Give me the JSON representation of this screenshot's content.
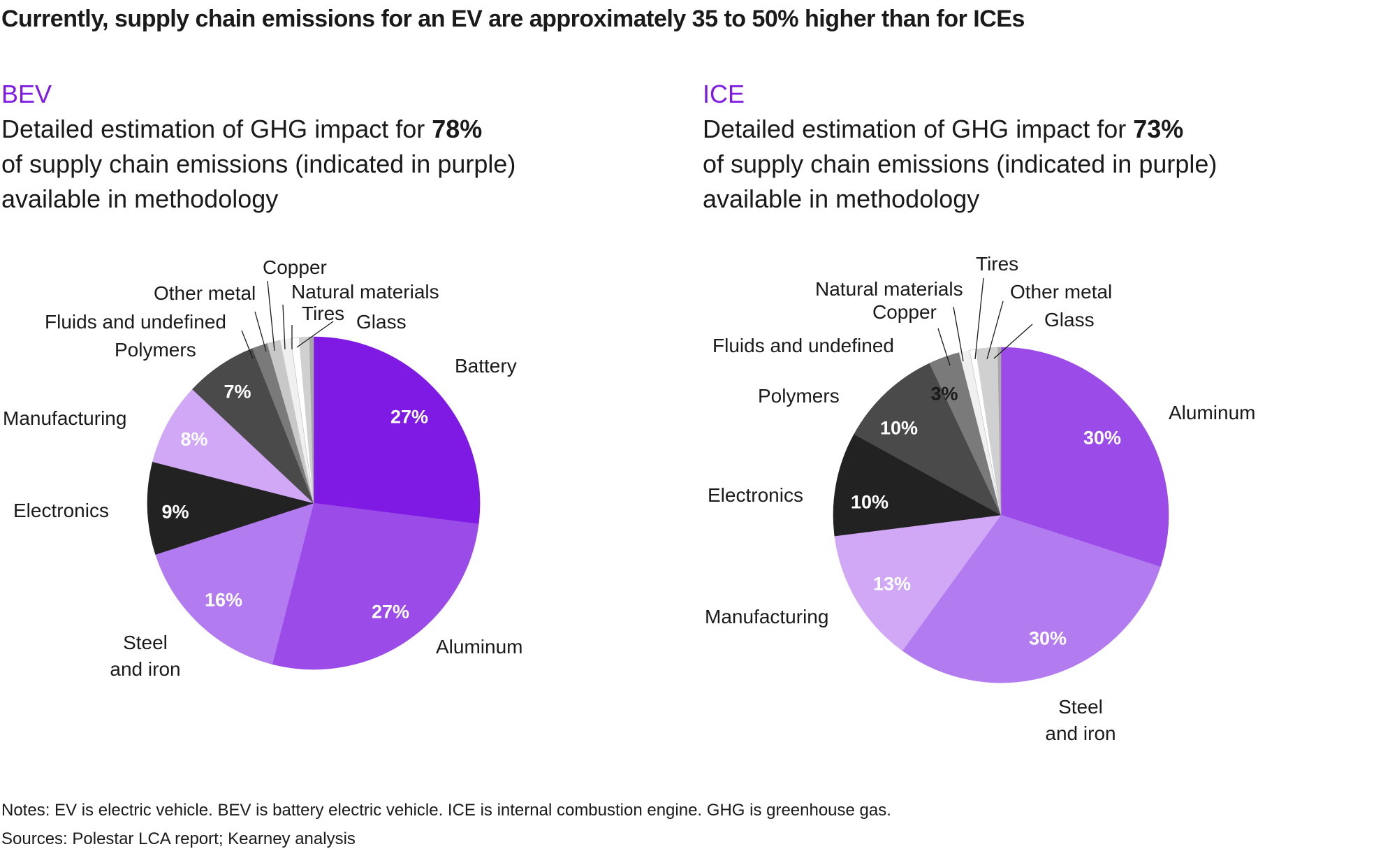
{
  "title": "Currently, supply chain emissions for an EV are approximately 35 to 50% higher than for ICEs",
  "notes": "Notes: EV is electric vehicle. BEV is battery electric vehicle. ICE is internal combustion engine. GHG is greenhouse gas.",
  "sources": "Sources: Polestar LCA report; Kearney analysis",
  "chart_data": [
    {
      "type": "pie",
      "title": "BEV",
      "subtitle_pre": "Detailed estimation of GHG impact for ",
      "subtitle_bold": "78%",
      "subtitle_line2": "of supply chain emissions (indicated in purple)",
      "subtitle_line3": "available in methodology",
      "slices": [
        {
          "label": "Battery",
          "value": 27,
          "value_label": "27%",
          "color": "#7e1ae3"
        },
        {
          "label": "Aluminum",
          "value": 27,
          "value_label": "27%",
          "color": "#9b4be8"
        },
        {
          "label": "Steel",
          "label2": "and iron",
          "value": 16,
          "value_label": "16%",
          "color": "#b27cf0"
        },
        {
          "label": "Electronics",
          "value": 9,
          "value_label": "9%",
          "color": "#222222"
        },
        {
          "label": "Manufacturing",
          "value": 8,
          "value_label": "8%",
          "color": "#d0a8f5"
        },
        {
          "label": "Polymers",
          "value": 7,
          "value_label": "7%",
          "color": "#4a4a4a"
        },
        {
          "label": "Fluids and undefined",
          "value": 1.5,
          "color": "#7a7a7a"
        },
        {
          "label": "Other metal",
          "value": 1.3,
          "color": "#c8c8c8"
        },
        {
          "label": "Copper",
          "value": 1,
          "color": "#f0f0f0"
        },
        {
          "label": "Natural materials",
          "value": 0.8,
          "color": "#ffffff"
        },
        {
          "label": "Tires",
          "value": 1,
          "color": "#d0d0d0"
        },
        {
          "label": "Glass",
          "value": 0.4,
          "color": "#a8a8a8"
        }
      ]
    },
    {
      "type": "pie",
      "title": "ICE",
      "subtitle_pre": "Detailed estimation of GHG impact for ",
      "subtitle_bold": "73%",
      "subtitle_line2": "of supply chain emissions (indicated in purple)",
      "subtitle_line3": "available in methodology",
      "slices": [
        {
          "label": "Aluminum",
          "value": 30,
          "value_label": "30%",
          "color": "#9b4be8"
        },
        {
          "label": "Steel",
          "label2": "and iron",
          "value": 30,
          "value_label": "30%",
          "color": "#b27cf0"
        },
        {
          "label": "Manufacturing",
          "value": 13,
          "value_label": "13%",
          "color": "#d0a8f5"
        },
        {
          "label": "Electronics",
          "value": 10,
          "value_label": "10%",
          "color": "#222222"
        },
        {
          "label": "Polymers",
          "value": 10,
          "value_label": "10%",
          "color": "#4a4a4a"
        },
        {
          "label": "Fluids and undefined",
          "value": 3,
          "value_label": "3%",
          "color": "#7a7a7a"
        },
        {
          "label": "Copper",
          "value": 1,
          "color": "#f0f0f0"
        },
        {
          "label": "Natural materials",
          "value": 0.6,
          "color": "#ffffff"
        },
        {
          "label": "Tires",
          "value": 1.4,
          "color": "#d0d0d0"
        },
        {
          "label": "Other metal",
          "value": 0.7,
          "color": "#d0d0d0"
        },
        {
          "label": "Glass",
          "value": 0.3,
          "color": "#a8a8a8"
        }
      ]
    }
  ]
}
